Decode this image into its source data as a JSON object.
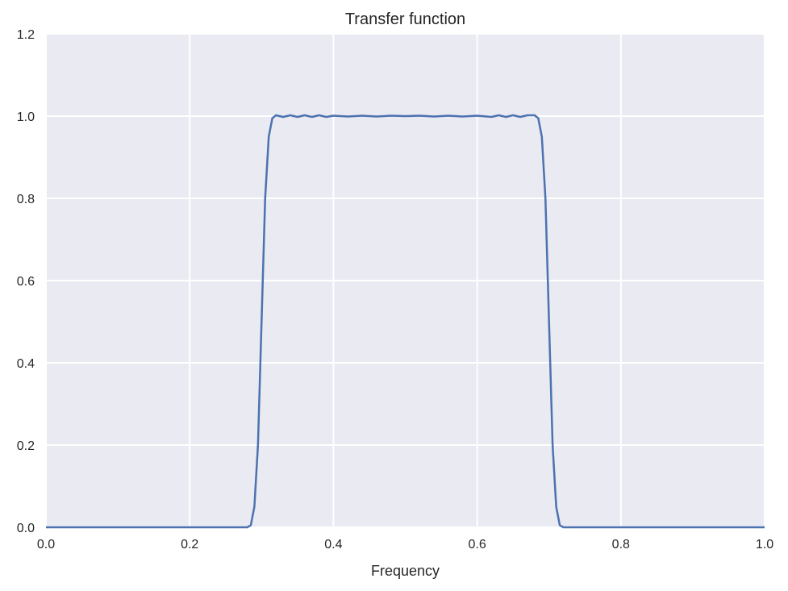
{
  "chart_data": {
    "type": "line",
    "title": "Transfer function",
    "xlabel": "Frequency",
    "ylabel": "",
    "xlim": [
      0.0,
      1.0
    ],
    "ylim": [
      0.0,
      1.2
    ],
    "xticks": [
      "0.0",
      "0.2",
      "0.4",
      "0.6",
      "0.8",
      "1.0"
    ],
    "yticks": [
      "0.0",
      "0.2",
      "0.4",
      "0.6",
      "0.8",
      "1.0",
      "1.2"
    ],
    "grid": true,
    "colors": {
      "background": "#EAEAF2",
      "grid": "#FFFFFF",
      "line": "#4C72B0"
    },
    "series": [
      {
        "x": [
          0.0,
          0.05,
          0.1,
          0.15,
          0.2,
          0.25,
          0.28,
          0.285,
          0.29,
          0.295,
          0.3,
          0.305,
          0.31,
          0.315,
          0.32,
          0.33,
          0.34,
          0.35,
          0.36,
          0.37,
          0.38,
          0.39,
          0.4,
          0.42,
          0.44,
          0.46,
          0.48,
          0.5,
          0.52,
          0.54,
          0.56,
          0.58,
          0.6,
          0.62,
          0.63,
          0.64,
          0.65,
          0.66,
          0.67,
          0.68,
          0.685,
          0.69,
          0.695,
          0.7,
          0.705,
          0.71,
          0.715,
          0.72,
          0.75,
          0.8,
          0.85,
          0.9,
          0.95,
          1.0
        ],
        "y": [
          0.0,
          0.0,
          0.0,
          0.0,
          0.0,
          0.0,
          0.0,
          0.005,
          0.05,
          0.2,
          0.5,
          0.8,
          0.95,
          0.995,
          1.002,
          0.998,
          1.002,
          0.998,
          1.002,
          0.998,
          1.002,
          0.998,
          1.001,
          0.999,
          1.001,
          0.999,
          1.001,
          1.0,
          1.001,
          0.999,
          1.001,
          0.999,
          1.001,
          0.998,
          1.002,
          0.998,
          1.002,
          0.998,
          1.002,
          1.002,
          0.995,
          0.95,
          0.8,
          0.5,
          0.2,
          0.05,
          0.005,
          0.0,
          0.0,
          0.0,
          0.0,
          0.0,
          0.0,
          0.0
        ]
      }
    ]
  }
}
